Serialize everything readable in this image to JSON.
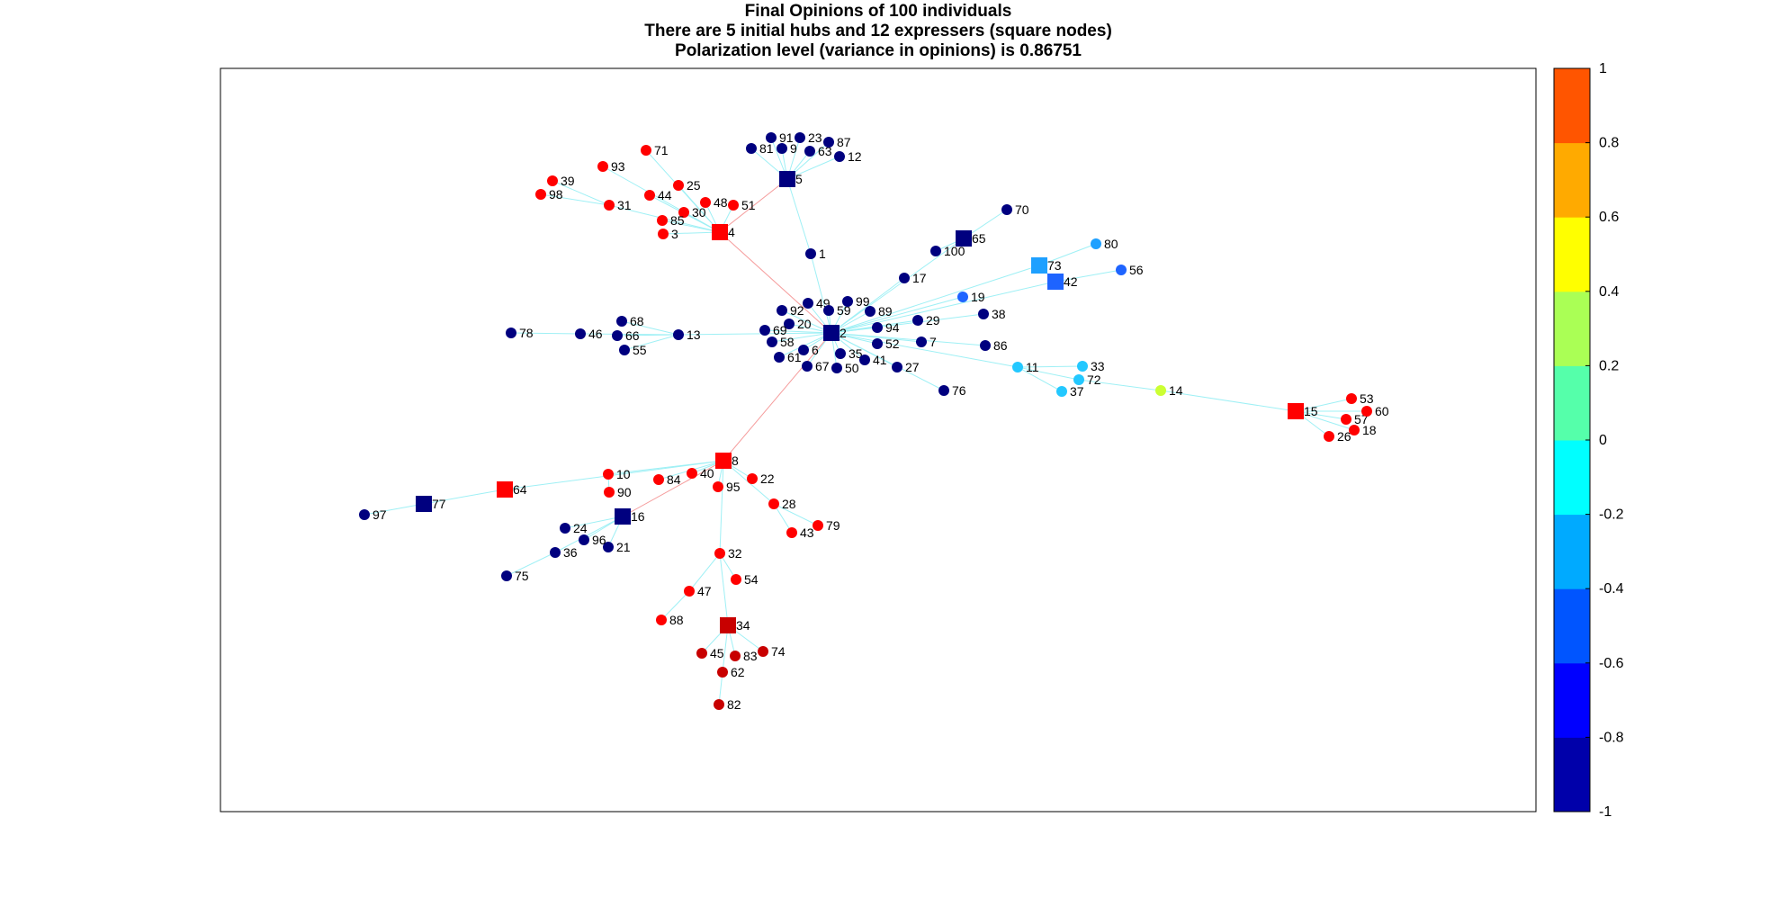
{
  "title": {
    "line1": "Final Opinions of 100 individuals",
    "line2": "There are 5 initial hubs and 12 expressers (square nodes)",
    "line3": "Polarization level (variance in opinions) is 0.86751"
  },
  "colorbar": {
    "range": [
      -1,
      1
    ],
    "ticks": [
      "1",
      "0.8",
      "0.6",
      "0.4",
      "0.2",
      "0",
      "-0.2",
      "-0.4",
      "-0.6",
      "-0.8",
      "-1"
    ],
    "bands": [
      "#0000aa",
      "#0000ff",
      "#0055ff",
      "#00aaff",
      "#00ffff",
      "#55ffaa",
      "#aaff55",
      "#ffff00",
      "#ffaa00",
      "#ff5500"
    ]
  },
  "colors": {
    "edge_agree": "#9ff0f5",
    "edge_disagree": "#f59b9b",
    "node_hub_pos": "#ff0000",
    "node_dark_red": "#c80000",
    "node_neg": "#00007f",
    "node_mid_blue": "#1e64ff",
    "node_light_blue": "#1ea0ff",
    "node_cyan": "#23c8ff",
    "node_yellow": "#ccff33"
  },
  "network": {
    "nodes": [
      {
        "id": "1",
        "opinion": "neg"
      },
      {
        "id": "2",
        "opinion": "neg",
        "shape": "square"
      },
      {
        "id": "3",
        "opinion": "pos"
      },
      {
        "id": "4",
        "opinion": "pos",
        "shape": "square"
      },
      {
        "id": "5",
        "opinion": "neg",
        "shape": "square"
      },
      {
        "id": "6",
        "opinion": "neg"
      },
      {
        "id": "7",
        "opinion": "neg"
      },
      {
        "id": "8",
        "opinion": "pos",
        "shape": "square"
      },
      {
        "id": "9",
        "opinion": "neg"
      },
      {
        "id": "10",
        "opinion": "pos"
      },
      {
        "id": "11",
        "opinion": "cyan"
      },
      {
        "id": "12",
        "opinion": "neg"
      },
      {
        "id": "13",
        "opinion": "neg"
      },
      {
        "id": "14",
        "opinion": "yellow"
      },
      {
        "id": "15",
        "opinion": "pos",
        "shape": "square"
      },
      {
        "id": "16",
        "opinion": "neg",
        "shape": "square"
      },
      {
        "id": "17",
        "opinion": "neg"
      },
      {
        "id": "18",
        "opinion": "pos"
      },
      {
        "id": "19",
        "opinion": "mid_blue"
      },
      {
        "id": "20",
        "opinion": "neg"
      },
      {
        "id": "21",
        "opinion": "neg"
      },
      {
        "id": "22",
        "opinion": "pos"
      },
      {
        "id": "23",
        "opinion": "neg"
      },
      {
        "id": "24",
        "opinion": "neg"
      },
      {
        "id": "25",
        "opinion": "pos"
      },
      {
        "id": "26",
        "opinion": "pos"
      },
      {
        "id": "27",
        "opinion": "neg"
      },
      {
        "id": "28",
        "opinion": "pos"
      },
      {
        "id": "29",
        "opinion": "neg"
      },
      {
        "id": "30",
        "opinion": "pos"
      },
      {
        "id": "31",
        "opinion": "pos"
      },
      {
        "id": "32",
        "opinion": "pos"
      },
      {
        "id": "33",
        "opinion": "cyan"
      },
      {
        "id": "34",
        "opinion": "dark_red",
        "shape": "square"
      },
      {
        "id": "35",
        "opinion": "neg"
      },
      {
        "id": "36",
        "opinion": "neg"
      },
      {
        "id": "37",
        "opinion": "cyan"
      },
      {
        "id": "38",
        "opinion": "neg"
      },
      {
        "id": "39",
        "opinion": "pos"
      },
      {
        "id": "40",
        "opinion": "pos"
      },
      {
        "id": "41",
        "opinion": "neg"
      },
      {
        "id": "42",
        "opinion": "mid_blue",
        "shape": "square"
      },
      {
        "id": "43",
        "opinion": "pos"
      },
      {
        "id": "44",
        "opinion": "pos"
      },
      {
        "id": "45",
        "opinion": "dark_red"
      },
      {
        "id": "46",
        "opinion": "neg"
      },
      {
        "id": "47",
        "opinion": "pos"
      },
      {
        "id": "48",
        "opinion": "pos"
      },
      {
        "id": "49",
        "opinion": "neg"
      },
      {
        "id": "50",
        "opinion": "neg"
      },
      {
        "id": "51",
        "opinion": "pos"
      },
      {
        "id": "52",
        "opinion": "neg"
      },
      {
        "id": "53",
        "opinion": "pos"
      },
      {
        "id": "54",
        "opinion": "pos"
      },
      {
        "id": "55",
        "opinion": "neg"
      },
      {
        "id": "56",
        "opinion": "mid_blue"
      },
      {
        "id": "57",
        "opinion": "pos"
      },
      {
        "id": "58",
        "opinion": "neg"
      },
      {
        "id": "59",
        "opinion": "neg"
      },
      {
        "id": "60",
        "opinion": "pos"
      },
      {
        "id": "61",
        "opinion": "neg"
      },
      {
        "id": "62",
        "opinion": "dark_red"
      },
      {
        "id": "63",
        "opinion": "neg"
      },
      {
        "id": "64",
        "opinion": "pos",
        "shape": "square"
      },
      {
        "id": "65",
        "opinion": "neg",
        "shape": "square"
      },
      {
        "id": "66",
        "opinion": "neg"
      },
      {
        "id": "67",
        "opinion": "neg"
      },
      {
        "id": "68",
        "opinion": "neg"
      },
      {
        "id": "69",
        "opinion": "neg"
      },
      {
        "id": "70",
        "opinion": "neg"
      },
      {
        "id": "71",
        "opinion": "pos"
      },
      {
        "id": "72",
        "opinion": "cyan"
      },
      {
        "id": "73",
        "opinion": "light_blue",
        "shape": "square"
      },
      {
        "id": "74",
        "opinion": "dark_red"
      },
      {
        "id": "75",
        "opinion": "neg"
      },
      {
        "id": "76",
        "opinion": "neg"
      },
      {
        "id": "77",
        "opinion": "neg",
        "shape": "square"
      },
      {
        "id": "78",
        "opinion": "neg"
      },
      {
        "id": "79",
        "opinion": "pos"
      },
      {
        "id": "80",
        "opinion": "light_blue"
      },
      {
        "id": "81",
        "opinion": "neg"
      },
      {
        "id": "82",
        "opinion": "dark_red"
      },
      {
        "id": "83",
        "opinion": "dark_red"
      },
      {
        "id": "84",
        "opinion": "pos"
      },
      {
        "id": "85",
        "opinion": "pos"
      },
      {
        "id": "86",
        "opinion": "neg"
      },
      {
        "id": "87",
        "opinion": "neg"
      },
      {
        "id": "88",
        "opinion": "pos"
      },
      {
        "id": "89",
        "opinion": "neg"
      },
      {
        "id": "90",
        "opinion": "pos"
      },
      {
        "id": "91",
        "opinion": "neg"
      },
      {
        "id": "92",
        "opinion": "neg"
      },
      {
        "id": "93",
        "opinion": "pos"
      },
      {
        "id": "94",
        "opinion": "neg"
      },
      {
        "id": "95",
        "opinion": "pos"
      },
      {
        "id": "96",
        "opinion": "neg"
      },
      {
        "id": "97",
        "opinion": "neg"
      },
      {
        "id": "98",
        "opinion": "pos"
      },
      {
        "id": "99",
        "opinion": "neg"
      },
      {
        "id": "100",
        "opinion": "neg"
      }
    ],
    "edges": [
      [
        "2",
        "1"
      ],
      [
        "2",
        "6"
      ],
      [
        "2",
        "7"
      ],
      [
        "2",
        "13"
      ],
      [
        "2",
        "17"
      ],
      [
        "2",
        "19"
      ],
      [
        "2",
        "20"
      ],
      [
        "2",
        "27"
      ],
      [
        "2",
        "29"
      ],
      [
        "2",
        "35"
      ],
      [
        "2",
        "38"
      ],
      [
        "2",
        "41"
      ],
      [
        "2",
        "49"
      ],
      [
        "2",
        "50"
      ],
      [
        "2",
        "52"
      ],
      [
        "2",
        "58"
      ],
      [
        "2",
        "59"
      ],
      [
        "2",
        "61"
      ],
      [
        "2",
        "67"
      ],
      [
        "2",
        "69"
      ],
      [
        "2",
        "76"
      ],
      [
        "2",
        "86"
      ],
      [
        "2",
        "89"
      ],
      [
        "2",
        "92"
      ],
      [
        "2",
        "94"
      ],
      [
        "2",
        "99"
      ],
      [
        "2",
        "11"
      ],
      [
        "2",
        "73"
      ],
      [
        "2",
        "42"
      ],
      [
        "2",
        "65"
      ],
      [
        "1",
        "5"
      ],
      [
        "5",
        "9"
      ],
      [
        "5",
        "12"
      ],
      [
        "5",
        "23"
      ],
      [
        "5",
        "63"
      ],
      [
        "5",
        "81"
      ],
      [
        "5",
        "87"
      ],
      [
        "5",
        "91"
      ],
      [
        "13",
        "46"
      ],
      [
        "13",
        "55"
      ],
      [
        "13",
        "66"
      ],
      [
        "13",
        "68"
      ],
      [
        "46",
        "78"
      ],
      [
        "65",
        "70"
      ],
      [
        "65",
        "100"
      ],
      [
        "73",
        "80"
      ],
      [
        "42",
        "56"
      ],
      [
        "73",
        "42"
      ],
      [
        "11",
        "33"
      ],
      [
        "11",
        "37"
      ],
      [
        "11",
        "72"
      ],
      [
        "72",
        "14"
      ],
      [
        "14",
        "15"
      ],
      [
        "15",
        "18"
      ],
      [
        "15",
        "26"
      ],
      [
        "15",
        "53"
      ],
      [
        "15",
        "57"
      ],
      [
        "15",
        "60"
      ],
      [
        "4",
        "3"
      ],
      [
        "4",
        "25"
      ],
      [
        "4",
        "30"
      ],
      [
        "4",
        "31"
      ],
      [
        "4",
        "44"
      ],
      [
        "4",
        "48"
      ],
      [
        "4",
        "51"
      ],
      [
        "4",
        "71"
      ],
      [
        "4",
        "85"
      ],
      [
        "4",
        "93"
      ],
      [
        "31",
        "39"
      ],
      [
        "31",
        "98"
      ],
      [
        "8",
        "10"
      ],
      [
        "8",
        "22"
      ],
      [
        "8",
        "28"
      ],
      [
        "8",
        "32"
      ],
      [
        "8",
        "40"
      ],
      [
        "8",
        "84"
      ],
      [
        "8",
        "95"
      ],
      [
        "8",
        "64"
      ],
      [
        "28",
        "43"
      ],
      [
        "28",
        "79"
      ],
      [
        "10",
        "90"
      ],
      [
        "64",
        "77"
      ],
      [
        "77",
        "97"
      ],
      [
        "16",
        "21"
      ],
      [
        "16",
        "24"
      ],
      [
        "16",
        "36"
      ],
      [
        "16",
        "96"
      ],
      [
        "36",
        "75"
      ],
      [
        "32",
        "34"
      ],
      [
        "32",
        "47"
      ],
      [
        "32",
        "54"
      ],
      [
        "47",
        "88"
      ],
      [
        "34",
        "45"
      ],
      [
        "34",
        "62"
      ],
      [
        "34",
        "74"
      ],
      [
        "34",
        "83"
      ],
      [
        "62",
        "82"
      ]
    ],
    "disagree_edges": [
      [
        "5",
        "4"
      ],
      [
        "4",
        "2"
      ],
      [
        "2",
        "8"
      ],
      [
        "8",
        "16"
      ]
    ]
  }
}
